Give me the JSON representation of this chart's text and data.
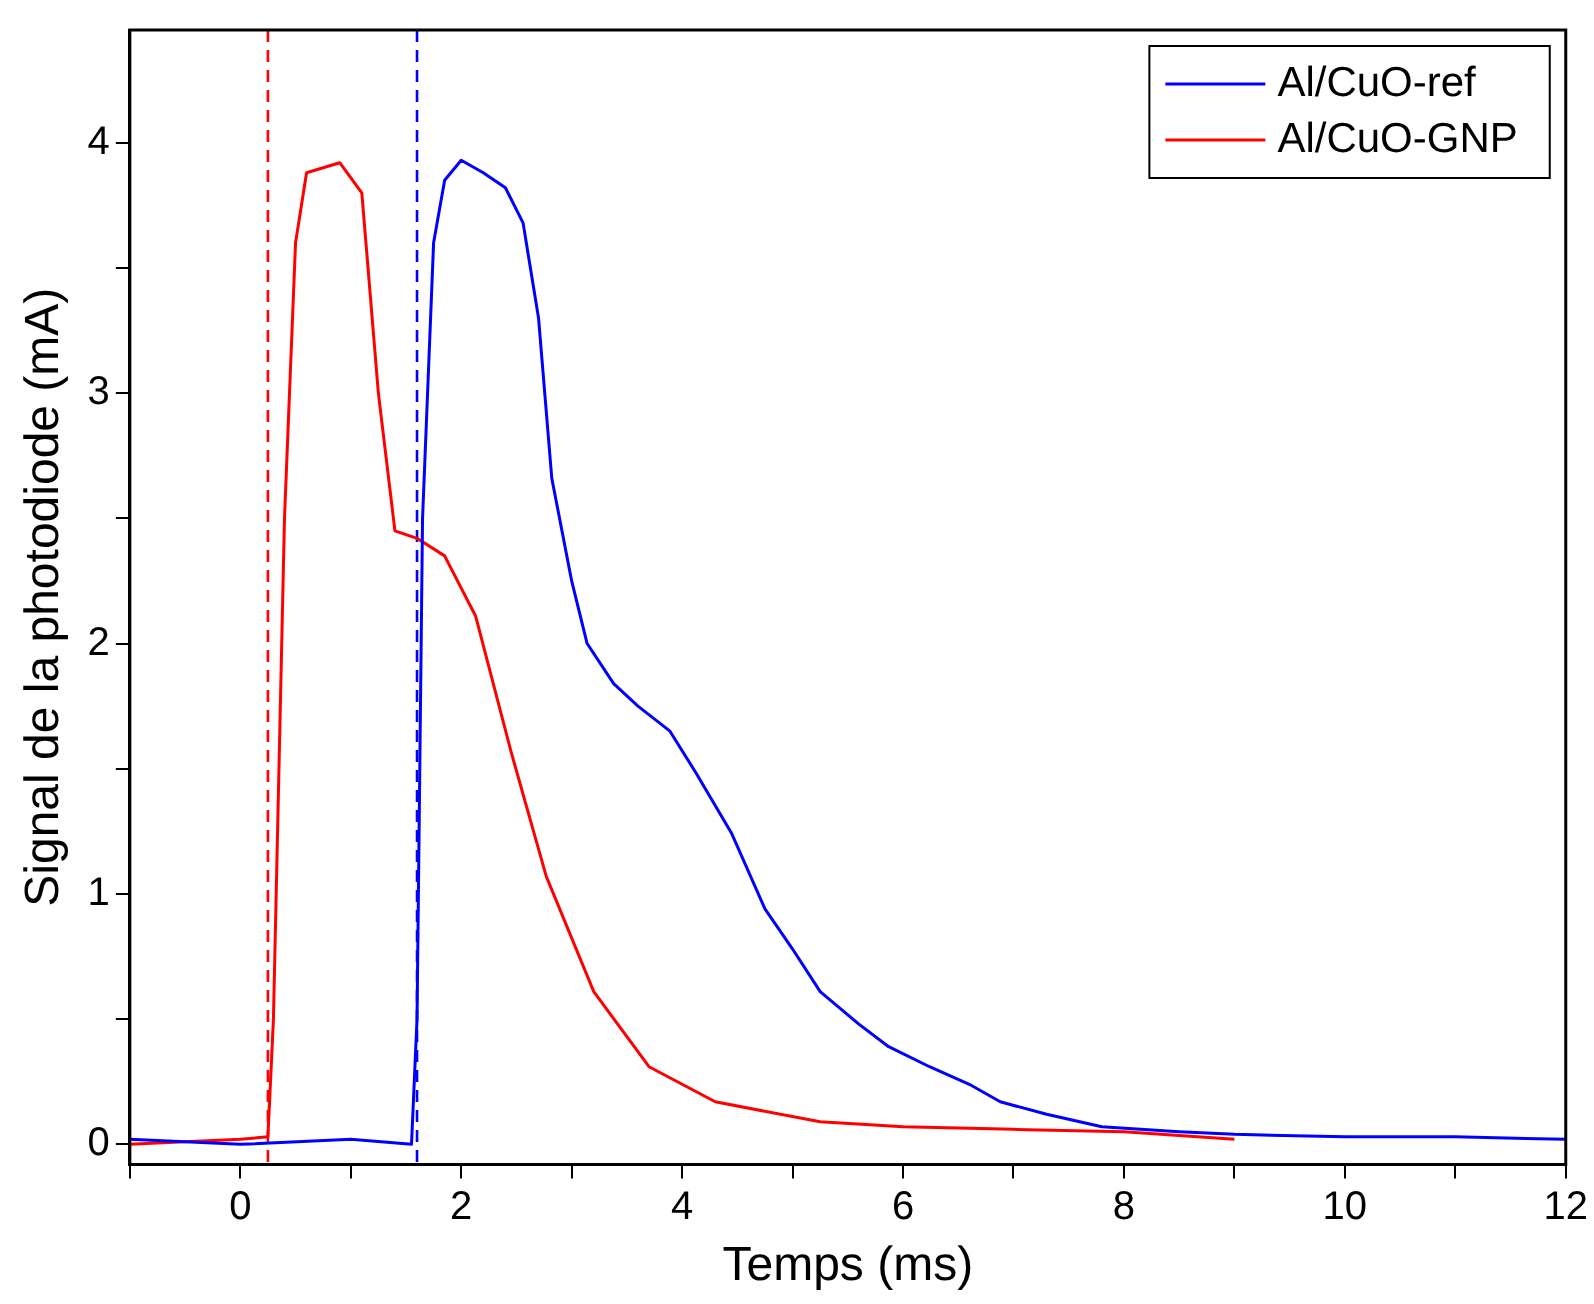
{
  "chart_data": {
    "type": "line",
    "xlabel": "Temps (ms)",
    "ylabel": "Signal de la photodiode (mA)",
    "xlim": [
      -1,
      12
    ],
    "ylim": [
      -0.08,
      4.45
    ],
    "xticks": [
      {
        "value": -1,
        "label": null
      },
      0,
      {
        "value": 1,
        "label": null
      },
      2,
      {
        "value": 3,
        "label": null
      },
      4,
      {
        "value": 5,
        "label": null
      },
      6,
      {
        "value": 7,
        "label": null
      },
      8,
      {
        "value": 9,
        "label": null
      },
      10,
      {
        "value": 11,
        "label": null
      },
      12
    ],
    "yticks": [
      0,
      {
        "value": 0.5,
        "label": null
      },
      1,
      {
        "value": 1.5,
        "label": null
      },
      2,
      {
        "value": 2.5,
        "label": null
      },
      3,
      {
        "value": 3.5,
        "label": null
      },
      4
    ],
    "legend": "top right",
    "marker": "none",
    "line_style": "solid",
    "series": [
      {
        "name": "Al/CuO-ref",
        "color": "#0000ff",
        "x": [
          -1,
          0,
          1,
          1.55,
          1.6,
          1.65,
          1.75,
          1.85,
          2.0,
          2.2,
          2.4,
          2.56,
          2.7,
          2.82,
          3.0,
          3.14,
          3.38,
          3.6,
          3.89,
          4.13,
          4.45,
          4.75,
          5.0,
          5.25,
          5.6,
          5.87,
          6.24,
          6.6,
          6.88,
          7.3,
          7.8,
          8.5,
          9,
          10,
          11,
          12
        ],
        "values": [
          0.02,
          0.0,
          0.02,
          0.0,
          0.5,
          2.5,
          3.6,
          3.85,
          3.93,
          3.88,
          3.82,
          3.68,
          3.3,
          2.66,
          2.25,
          2.0,
          1.84,
          1.75,
          1.65,
          1.48,
          1.24,
          0.94,
          0.78,
          0.61,
          0.48,
          0.39,
          0.31,
          0.24,
          0.17,
          0.12,
          0.07,
          0.05,
          0.04,
          0.03,
          0.03,
          0.02
        ]
      },
      {
        "name": "Al/CuO-GNP",
        "color": "#ff0000",
        "x": [
          -1,
          0,
          0.25,
          0.3,
          0.4,
          0.5,
          0.6,
          0.9,
          1.1,
          1.25,
          1.4,
          1.6,
          1.85,
          2.13,
          2.45,
          2.77,
          3.2,
          3.7,
          4.3,
          5.25,
          6,
          7,
          8,
          9
        ],
        "values": [
          0.0,
          0.02,
          0.03,
          0.5,
          2.5,
          3.6,
          3.88,
          3.92,
          3.8,
          3.0,
          2.45,
          2.42,
          2.35,
          2.11,
          1.57,
          1.07,
          0.61,
          0.31,
          0.17,
          0.09,
          0.07,
          0.06,
          0.05,
          0.02
        ]
      }
    ],
    "ref_lines": [
      {
        "axis": "x",
        "value": 0.25,
        "color": "#ff0000",
        "line_style": "dashed"
      },
      {
        "axis": "x",
        "value": 1.6,
        "color": "#0000ff",
        "line_style": "dashed"
      }
    ]
  }
}
